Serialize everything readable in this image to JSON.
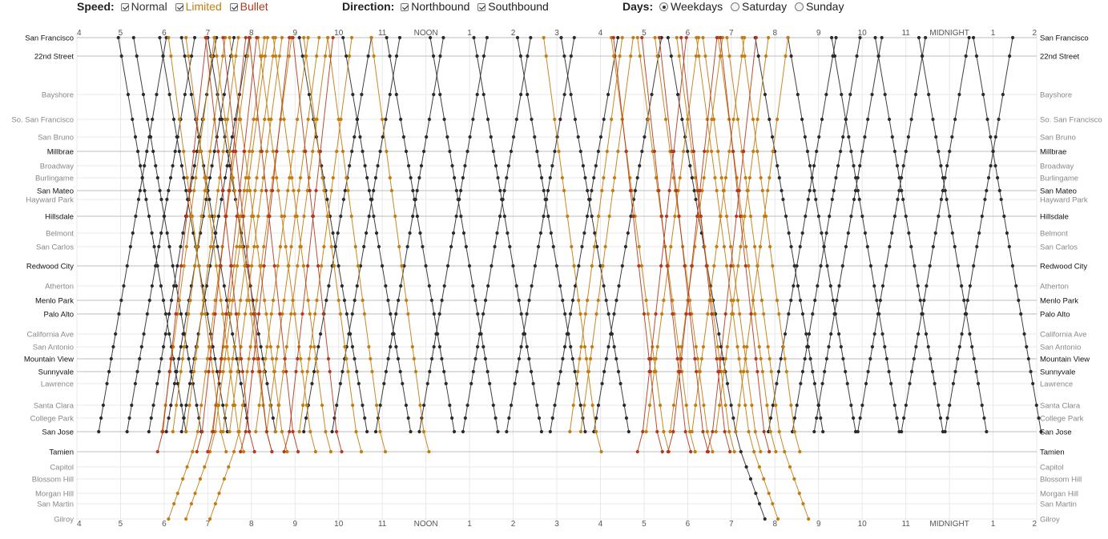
{
  "controls": {
    "speed": {
      "label": "Speed:",
      "normal": "Normal",
      "limited": "Limited",
      "bullet": "Bullet",
      "normal_checked": true,
      "limited_checked": true,
      "bullet_checked": true
    },
    "direction": {
      "label": "Direction:",
      "northbound": "Northbound",
      "southbound": "Southbound",
      "northbound_checked": true,
      "southbound_checked": true
    },
    "days": {
      "label": "Days:",
      "weekdays": "Weekdays",
      "saturday": "Saturday",
      "sunday": "Sunday",
      "selected": "weekdays"
    }
  },
  "chart_data": {
    "type": "line",
    "x_axis": {
      "unit": "hour of day",
      "range": [
        4,
        26
      ],
      "tick_labels": [
        "4",
        "5",
        "6",
        "7",
        "8",
        "9",
        "10",
        "11",
        "NOON",
        "1",
        "2",
        "3",
        "4",
        "5",
        "6",
        "7",
        "8",
        "9",
        "10",
        "11",
        "MIDNIGHT",
        "1",
        "2"
      ]
    },
    "stations": [
      {
        "name": "San Francisco",
        "major": true
      },
      {
        "name": "22nd Street",
        "major": true
      },
      {
        "name": "Bayshore",
        "major": false
      },
      {
        "name": "So. San Francisco",
        "major": false
      },
      {
        "name": "San Bruno",
        "major": false
      },
      {
        "name": "Millbrae",
        "major": true
      },
      {
        "name": "Broadway",
        "major": false
      },
      {
        "name": "Burlingame",
        "major": false
      },
      {
        "name": "San Mateo",
        "major": true
      },
      {
        "name": "Hayward Park",
        "major": false
      },
      {
        "name": "Hillsdale",
        "major": true
      },
      {
        "name": "Belmont",
        "major": false
      },
      {
        "name": "San Carlos",
        "major": false
      },
      {
        "name": "Redwood City",
        "major": true
      },
      {
        "name": "Atherton",
        "major": false
      },
      {
        "name": "Menlo Park",
        "major": true
      },
      {
        "name": "Palo Alto",
        "major": true
      },
      {
        "name": "California Ave",
        "major": false
      },
      {
        "name": "San Antonio",
        "major": false
      },
      {
        "name": "Mountain View",
        "major": true
      },
      {
        "name": "Sunnyvale",
        "major": true
      },
      {
        "name": "Lawrence",
        "major": false
      },
      {
        "name": "Santa Clara",
        "major": false
      },
      {
        "name": "College Park",
        "major": false
      },
      {
        "name": "San Jose",
        "major": true
      },
      {
        "name": "Tamien",
        "major": true
      },
      {
        "name": "Capitol",
        "major": false
      },
      {
        "name": "Blossom Hill",
        "major": false
      },
      {
        "name": "Morgan Hill",
        "major": false
      },
      {
        "name": "San Martin",
        "major": false
      },
      {
        "name": "Gilroy",
        "major": false
      }
    ],
    "colors": {
      "normal": "#2b2b2b",
      "limited": "#c27c10",
      "bullet": "#b2381e",
      "grid": "#e8e8e8",
      "major_grid": "#bdbdbd"
    },
    "trains": {
      "normal_nb": [
        4.5,
        5.15,
        5.65,
        6.05,
        6.4,
        9.2,
        9.85,
        10.85,
        11.85,
        12.85,
        13.85,
        14.85,
        15.85,
        19.85,
        20.4,
        20.9,
        21.9,
        22.9,
        23.9
      ],
      "normal_sb": [
        4.95,
        5.3,
        5.9,
        6.4,
        7.0,
        9.1,
        10.1,
        11.1,
        12.1,
        13.1,
        14.1,
        15.1,
        19.55,
        20.3,
        21.3,
        22.3,
        23.3,
        24.55
      ],
      "normal_nb_gilroy": [],
      "normal_sb_gilroy": [
        17.55
      ],
      "limited_nb": [
        5.95,
        6.2,
        6.5,
        7.1,
        7.35,
        7.5,
        8.1,
        8.35,
        8.55,
        9.1,
        15.3,
        15.55,
        17.05,
        17.6,
        18.1,
        18.65,
        19.1
      ],
      "limited_sb": [
        6.1,
        6.5,
        7.15,
        7.5,
        8.15,
        8.5,
        9.2,
        9.75,
        10.75,
        14.7,
        16.25,
        16.85,
        17.25,
        17.75,
        18.35,
        18.7,
        19.25
      ],
      "limited_nb_gilroy": [
        6.1,
        6.5,
        7.05
      ],
      "limited_sb_gilroy": [
        18.2,
        18.9
      ],
      "bullet_nb": [
        5.85,
        6.75,
        7.0,
        7.75,
        8.75,
        16.85,
        17.55,
        18.45
      ],
      "bullet_sb": [
        6.95,
        7.35,
        7.95,
        8.95,
        16.3,
        16.95,
        17.35,
        17.85,
        18.75
      ]
    }
  }
}
